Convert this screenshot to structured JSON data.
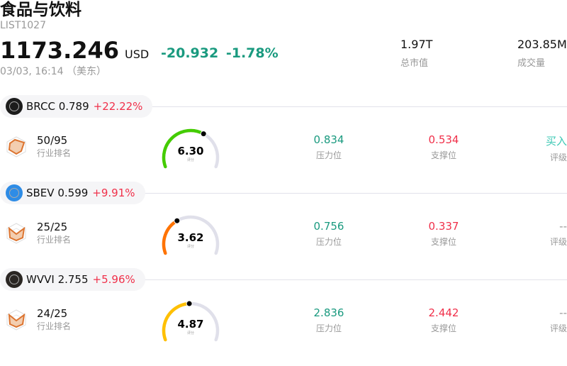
{
  "header": {
    "title": "食品与饮料",
    "code": "LIST1027",
    "price": "1173.246",
    "currency": "USD",
    "change": "-20.932",
    "change_pct": "-1.78%",
    "time": "03/03, 16:14 （美东）"
  },
  "stats": [
    {
      "value": "1.97T",
      "label": "总市值"
    },
    {
      "value": "203.85M",
      "label": "成交量"
    }
  ],
  "colors": {
    "up": "#f0304a",
    "down": "#1a9a7f",
    "buy": "#3cc8b4",
    "gauge_track": "#e0e0ea"
  },
  "labels": {
    "rank": "行业排名",
    "score": "评分",
    "resistance": "压力位",
    "support": "支撑位",
    "rating": "评级"
  },
  "stocks": [
    {
      "ticker": "BRCC",
      "price": "0.789",
      "pct": "+22.22%",
      "logo_color": "#1c1c1c",
      "rank": "50/95",
      "score": "6.30",
      "score_value": 6.3,
      "gauge_color": "#44cc00",
      "resistance": "0.834",
      "support": "0.534",
      "rating": "买入"
    },
    {
      "ticker": "SBEV",
      "price": "0.599",
      "pct": "+9.91%",
      "logo_color": "#2e8ce6",
      "rank": "25/25",
      "score": "3.62",
      "score_value": 3.62,
      "gauge_color": "#ff7300",
      "resistance": "0.756",
      "support": "0.337",
      "rating": "--"
    },
    {
      "ticker": "WVVI",
      "price": "2.755",
      "pct": "+5.96%",
      "logo_color": "#2a2623",
      "rank": "24/25",
      "score": "4.87",
      "score_value": 4.87,
      "gauge_color": "#ffc000",
      "resistance": "2.836",
      "support": "2.442",
      "rating": "--"
    }
  ]
}
